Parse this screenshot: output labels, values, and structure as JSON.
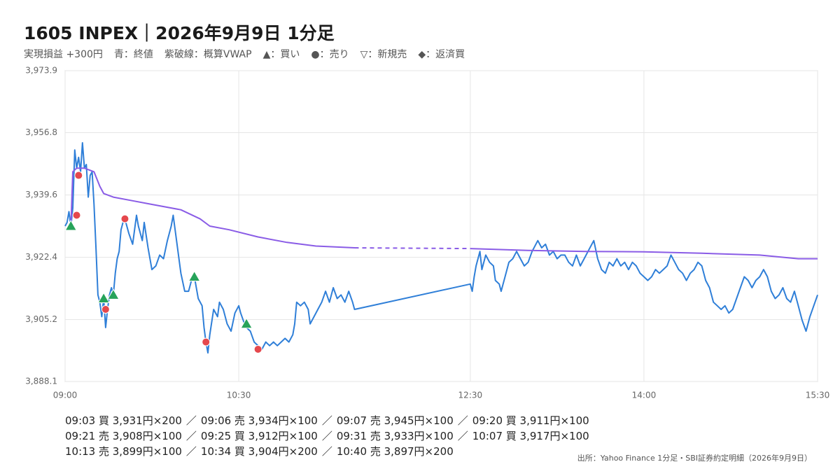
{
  "chart_data": {
    "type": "line",
    "title": "1605 INPEX｜2026年9月9日 1分足",
    "subtitle": [
      "実現損益 +300円",
      "青：終値",
      "紫破線：概算VWAP",
      "▲：買い",
      "●：売り",
      "▽：新規売",
      "◆：返済買"
    ],
    "xlim": [
      "09:00",
      "15:30"
    ],
    "xticks": [
      "09:00",
      "10:30",
      "12:30",
      "14:00",
      "15:30"
    ],
    "ylim": [
      3888.1,
      3973.9
    ],
    "yticks": [
      {
        "value": 3888.1,
        "label": "3,888.1"
      },
      {
        "value": 3905.2,
        "label": "3,905.2"
      },
      {
        "value": 3922.4,
        "label": "3,922.4"
      },
      {
        "value": 3939.6,
        "label": "3,939.6"
      },
      {
        "value": 3956.8,
        "label": "3,956.8"
      },
      {
        "value": 3973.9,
        "label": "3,973.9"
      }
    ],
    "grid": true,
    "series": [
      {
        "color": "#2f7fd8",
        "x": [
          "09:00",
          "09:01",
          "09:02",
          "09:03",
          "09:04",
          "09:05",
          "09:06",
          "09:07",
          "09:08",
          "09:09",
          "09:10",
          "09:11",
          "09:12",
          "09:13",
          "09:14",
          "09:15",
          "09:16",
          "09:17",
          "09:18",
          "09:19",
          "09:20",
          "09:21",
          "09:22",
          "09:23",
          "09:24",
          "09:25",
          "09:26",
          "09:27",
          "09:28",
          "09:29",
          "09:30",
          "09:31",
          "09:33",
          "09:35",
          "09:37",
          "09:38",
          "09:40",
          "09:41",
          "09:43",
          "09:45",
          "09:47",
          "09:49",
          "09:51",
          "09:53",
          "09:55",
          "09:56",
          "09:58",
          "10:00",
          "10:02",
          "10:04",
          "10:06",
          "10:07",
          "10:09",
          "10:11",
          "10:12",
          "10:13",
          "10:14",
          "10:15",
          "10:17",
          "10:19",
          "10:20",
          "10:22",
          "10:24",
          "10:26",
          "10:28",
          "10:30",
          "10:31",
          "10:33",
          "10:34",
          "10:36",
          "10:38",
          "10:40",
          "10:42",
          "10:44",
          "10:46",
          "10:48",
          "10:50",
          "10:52",
          "10:54",
          "10:56",
          "10:58",
          "10:59",
          "11:00",
          "11:02",
          "11:04",
          "11:06",
          "11:07",
          "11:09",
          "11:11",
          "11:13",
          "11:15",
          "11:17",
          "11:19",
          "11:21",
          "11:23",
          "11:25",
          "11:27",
          "11:29",
          "11:30",
          "12:30",
          "12:31",
          "12:32",
          "12:33",
          "12:35",
          "12:36",
          "12:38",
          "12:40",
          "12:42",
          "12:43",
          "12:45",
          "12:46",
          "12:48",
          "12:50",
          "12:52",
          "12:54",
          "12:56",
          "12:58",
          "13:00",
          "13:02",
          "13:05",
          "13:07",
          "13:09",
          "13:11",
          "13:13",
          "13:15",
          "13:17",
          "13:19",
          "13:21",
          "13:23",
          "13:25",
          "13:27",
          "13:29",
          "13:31",
          "13:33",
          "13:34",
          "13:36",
          "13:38",
          "13:40",
          "13:42",
          "13:44",
          "13:46",
          "13:48",
          "13:50",
          "13:52",
          "13:54",
          "13:56",
          "13:58",
          "14:00",
          "14:02",
          "14:04",
          "14:06",
          "14:08",
          "14:10",
          "14:12",
          "14:14",
          "14:16",
          "14:18",
          "14:20",
          "14:22",
          "14:24",
          "14:26",
          "14:28",
          "14:30",
          "14:32",
          "14:34",
          "14:36",
          "14:38",
          "14:40",
          "14:42",
          "14:44",
          "14:46",
          "14:48",
          "14:50",
          "14:52",
          "14:54",
          "14:56",
          "14:58",
          "15:00",
          "15:02",
          "15:04",
          "15:06",
          "15:08",
          "15:10",
          "15:12",
          "15:14",
          "15:16",
          "15:18",
          "15:20",
          "15:22",
          "15:24",
          "15:26",
          "15:28",
          "15:30"
        ],
        "values": [
          3931,
          3932,
          3935,
          3931,
          3936,
          3952,
          3947,
          3950,
          3946,
          3954,
          3947,
          3948,
          3939,
          3945,
          3946,
          3937,
          3925,
          3912,
          3910,
          3906,
          3911,
          3903,
          3908,
          3912,
          3914,
          3912,
          3918,
          3922,
          3924,
          3930,
          3932,
          3933,
          3929,
          3926,
          3934,
          3931,
          3927,
          3932,
          3925,
          3919,
          3920,
          3923,
          3922,
          3927,
          3931,
          3934,
          3926,
          3918,
          3913,
          3913,
          3917,
          3917,
          3911,
          3909,
          3903,
          3899,
          3896,
          3901,
          3908,
          3906,
          3910,
          3908,
          3904,
          3902,
          3907,
          3909,
          3907,
          3904,
          3903,
          3902,
          3899,
          3898,
          3897,
          3899,
          3898,
          3899,
          3898,
          3899,
          3900,
          3899,
          3901,
          3904,
          3910,
          3909,
          3910,
          3908,
          3904,
          3906,
          3908,
          3910,
          3913,
          3910,
          3914,
          3911,
          3912,
          3910,
          3913,
          3910,
          3908,
          3915,
          3913,
          3917,
          3920,
          3924,
          3919,
          3923,
          3921,
          3920,
          3916,
          3915,
          3913,
          3917,
          3921,
          3922,
          3924,
          3922,
          3920,
          3921,
          3924,
          3927,
          3925,
          3926,
          3923,
          3924,
          3922,
          3923,
          3923,
          3921,
          3920,
          3923,
          3920,
          3922,
          3924,
          3926,
          3927,
          3922,
          3919,
          3918,
          3921,
          3920,
          3922,
          3920,
          3921,
          3919,
          3921,
          3920,
          3918,
          3917,
          3916,
          3917,
          3919,
          3918,
          3919,
          3920,
          3923,
          3921,
          3919,
          3918,
          3916,
          3918,
          3919,
          3921,
          3920,
          3916,
          3914,
          3910,
          3909,
          3908,
          3909,
          3907,
          3908,
          3911,
          3914,
          3917,
          3916,
          3914,
          3916,
          3917,
          3919,
          3917,
          3913,
          3911,
          3912,
          3914,
          3911,
          3910,
          3913,
          3909,
          3905,
          3902,
          3906,
          3909,
          3912
        ]
      },
      {
        "color": "#8a5ce6",
        "gap_style": "dashed",
        "x": [
          "09:03",
          "09:04",
          "09:06",
          "09:10",
          "09:15",
          "09:18",
          "09:20",
          "09:25",
          "09:35",
          "09:45",
          "10:00",
          "10:10",
          "10:15",
          "10:25",
          "10:40",
          "10:55",
          "11:10",
          "11:30",
          "12:30",
          "13:00",
          "13:30",
          "14:00",
          "14:30",
          "15:00",
          "15:20",
          "15:30"
        ],
        "values": [
          3931,
          3946,
          3947,
          3947,
          3946,
          3942,
          3940,
          3939,
          3938,
          3937,
          3935.5,
          3933,
          3931,
          3930,
          3928,
          3926.5,
          3925.5,
          3925,
          3924.8,
          3924.3,
          3924,
          3923.9,
          3923.5,
          3923,
          3922,
          3922
        ]
      }
    ],
    "markers": {
      "buy": {
        "shape": "triangle",
        "color": "#27a35a",
        "x": [
          "09:03",
          "09:20",
          "09:25",
          "10:07",
          "10:34"
        ],
        "values": [
          3931,
          3911,
          3912,
          3917,
          3904
        ]
      },
      "sell": {
        "shape": "circle",
        "color": "#e5484d",
        "x": [
          "09:06",
          "09:07",
          "09:21",
          "09:31",
          "10:13",
          "10:40"
        ],
        "values": [
          3934,
          3945,
          3908,
          3933,
          3899,
          3897
        ]
      }
    },
    "trade_log": {
      "separator": "／",
      "lines": [
        [
          "09:03 買 3,931円×200",
          "09:06 売 3,934円×100",
          "09:07 売 3,945円×100",
          "09:20 買 3,911円×100"
        ],
        [
          "09:21 売 3,908円×100",
          "09:25 買 3,912円×100",
          "09:31 売 3,933円×100",
          "10:07 買 3,917円×100"
        ],
        [
          "10:13 売 3,899円×100",
          "10:34 買 3,904円×200",
          "10:40 売 3,897円×200"
        ]
      ]
    },
    "source": "出所：Yahoo Finance 1分足・SBI証券約定明細（2026年9月9日）"
  }
}
